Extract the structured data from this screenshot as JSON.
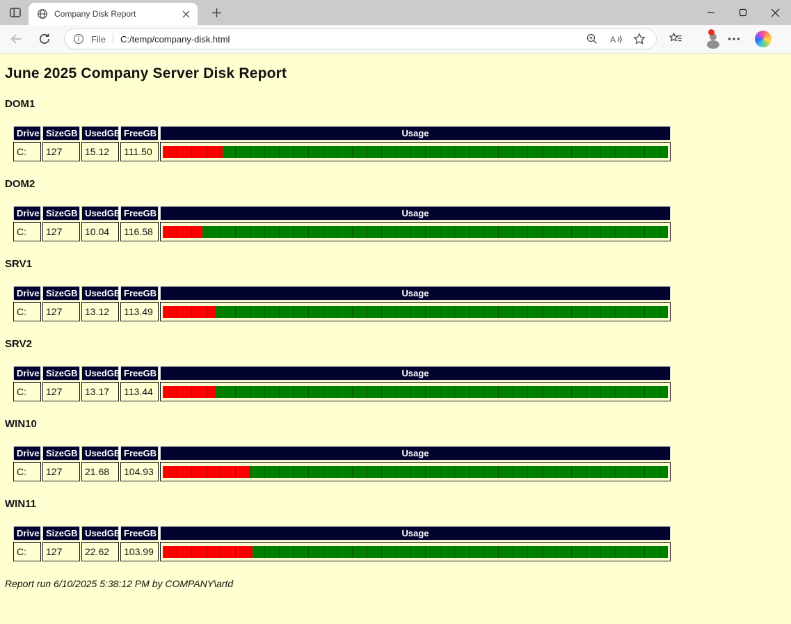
{
  "browser": {
    "tab": {
      "title": "Company Disk Report"
    },
    "address": {
      "scheme_label": "File",
      "url": "C:/temp/company-disk.html"
    }
  },
  "page": {
    "title": "June 2025 Company Server Disk Report",
    "columns": [
      "Drive",
      "SizeGB",
      "UsedGB",
      "FreeGB",
      "Usage"
    ],
    "servers": [
      {
        "name": "DOM1",
        "drive": "C:",
        "size_gb": "127",
        "used_gb": "15.12",
        "free_gb": "111.50"
      },
      {
        "name": "DOM2",
        "drive": "C:",
        "size_gb": "127",
        "used_gb": "10.04",
        "free_gb": "116.58"
      },
      {
        "name": "SRV1",
        "drive": "C:",
        "size_gb": "127",
        "used_gb": "13.12",
        "free_gb": "113.49"
      },
      {
        "name": "SRV2",
        "drive": "C:",
        "size_gb": "127",
        "used_gb": "13.17",
        "free_gb": "113.44"
      },
      {
        "name": "WIN10",
        "drive": "C:",
        "size_gb": "127",
        "used_gb": "21.68",
        "free_gb": "104.93"
      },
      {
        "name": "WIN11",
        "drive": "C:",
        "size_gb": "127",
        "used_gb": "22.62",
        "free_gb": "103.99"
      }
    ],
    "footer": "Report run 6/10/2025 5:38:12 PM by COMPANY\\artd",
    "colors": {
      "used": "#ff0000",
      "free": "#008000",
      "header_bg": "#02022e",
      "page_bg": "#ffffd2"
    }
  }
}
